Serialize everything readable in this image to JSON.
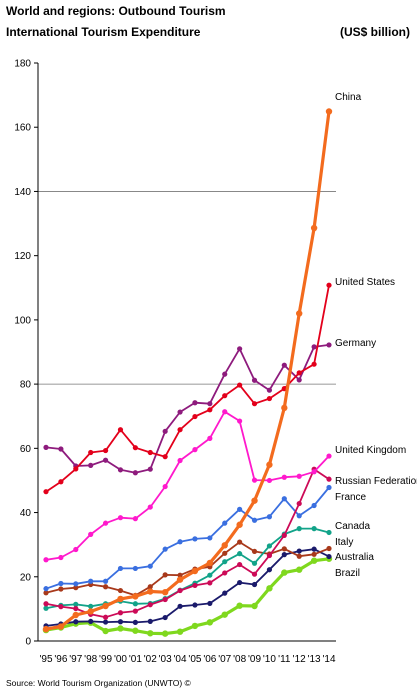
{
  "header": {
    "title": "World and regions: Outbound Tourism",
    "subtitle": "International Tourism Expenditure",
    "unit": "(US$ billion)"
  },
  "footer": {
    "source": "Source: World Tourism Organization (UNWTO) ©"
  },
  "chart_data": {
    "type": "line",
    "title": "International Tourism Expenditure",
    "xlabel": "",
    "ylabel": "(US$ billion)",
    "ylim": [
      0,
      180
    ],
    "yticks": [
      0,
      20,
      40,
      60,
      80,
      100,
      120,
      140,
      160,
      180
    ],
    "gridlines": [
      80,
      140
    ],
    "x": [
      1995,
      1996,
      1997,
      1998,
      1999,
      2000,
      2001,
      2002,
      2003,
      2004,
      2005,
      2006,
      2007,
      2008,
      2009,
      2010,
      2011,
      2012,
      2013,
      2014
    ],
    "xtick_labels": [
      "'95",
      "'96",
      "'97",
      "'98",
      "'99",
      "'00",
      "'01",
      "'02",
      "'03",
      "'04",
      "'05",
      "'06",
      "'07",
      "'08",
      "'09",
      "'10",
      "'11",
      "'12",
      "'13",
      "'14"
    ],
    "series": [
      {
        "name": "China",
        "color": "#f36b1e",
        "width": 3.2,
        "values": [
          3.7,
          4.5,
          8.1,
          9.2,
          10.9,
          13.1,
          13.9,
          15.4,
          15.2,
          19.1,
          21.8,
          24.3,
          29.8,
          36.2,
          43.7,
          54.9,
          72.6,
          102.0,
          128.6,
          164.9
        ]
      },
      {
        "name": "United States",
        "color": "#e3001b",
        "width": 1.8,
        "values": [
          46.5,
          49.6,
          53.6,
          58.7,
          59.3,
          65.8,
          60.2,
          58.7,
          57.4,
          65.8,
          69.9,
          72.0,
          76.4,
          79.7,
          73.9,
          75.5,
          78.6,
          83.5,
          86.2,
          110.8
        ]
      },
      {
        "name": "Germany",
        "color": "#8e1b7d",
        "width": 1.8,
        "values": [
          60.3,
          59.8,
          54.5,
          54.7,
          56.3,
          53.3,
          52.4,
          53.5,
          65.3,
          71.3,
          74.2,
          73.9,
          83.1,
          91.0,
          81.2,
          78.1,
          85.9,
          81.3,
          91.6,
          92.2
        ]
      },
      {
        "name": "United Kingdom",
        "color": "#ff19cc",
        "width": 1.8,
        "values": [
          25.3,
          26.0,
          28.5,
          33.2,
          36.7,
          38.4,
          38.1,
          41.7,
          48.1,
          56.2,
          59.6,
          63.1,
          71.4,
          68.5,
          50.1,
          50.0,
          51.0,
          51.3,
          52.7,
          57.6
        ]
      },
      {
        "name": "Russian Federation",
        "color": "#cc0a57",
        "width": 1.8,
        "values": [
          11.6,
          10.7,
          10.1,
          8.3,
          7.4,
          8.8,
          9.3,
          11.3,
          12.9,
          15.7,
          17.3,
          18.1,
          21.2,
          23.8,
          20.8,
          26.6,
          32.9,
          42.8,
          53.5,
          50.4
        ]
      },
      {
        "name": "France",
        "color": "#3a6fe0",
        "width": 1.8,
        "values": [
          16.3,
          17.9,
          17.8,
          18.6,
          18.6,
          22.6,
          22.6,
          23.3,
          28.6,
          30.9,
          31.8,
          32.1,
          36.7,
          41.0,
          37.6,
          38.7,
          44.3,
          39.0,
          42.2,
          47.8
        ]
      },
      {
        "name": "Canada",
        "color": "#12a389",
        "width": 1.8,
        "values": [
          10.2,
          11.1,
          11.4,
          10.8,
          11.6,
          12.4,
          11.6,
          11.7,
          13.2,
          15.8,
          18.0,
          20.5,
          24.7,
          27.2,
          24.2,
          29.6,
          33.3,
          35.0,
          35.0,
          33.8
        ]
      },
      {
        "name": "Italy",
        "color": "#a8391b",
        "width": 1.8,
        "values": [
          15.0,
          16.2,
          16.6,
          17.6,
          16.9,
          15.7,
          14.2,
          16.9,
          20.6,
          20.5,
          22.4,
          23.1,
          27.3,
          30.8,
          27.9,
          27.1,
          28.7,
          26.4,
          27.0,
          28.8
        ]
      },
      {
        "name": "Australia",
        "color": "#1a1a6b",
        "width": 1.8,
        "values": [
          4.7,
          5.3,
          6.0,
          6.1,
          5.9,
          6.0,
          5.8,
          6.1,
          7.3,
          10.8,
          11.2,
          11.7,
          14.9,
          18.2,
          17.6,
          22.2,
          26.9,
          28.0,
          28.6,
          26.3
        ]
      },
      {
        "name": "Brazil",
        "color": "#7fd81e",
        "width": 3.2,
        "values": [
          3.4,
          4.2,
          5.4,
          5.7,
          3.1,
          3.9,
          3.2,
          2.4,
          2.3,
          2.9,
          4.7,
          5.8,
          8.2,
          11.0,
          10.9,
          16.4,
          21.3,
          22.2,
          25.0,
          25.6
        ]
      }
    ]
  }
}
